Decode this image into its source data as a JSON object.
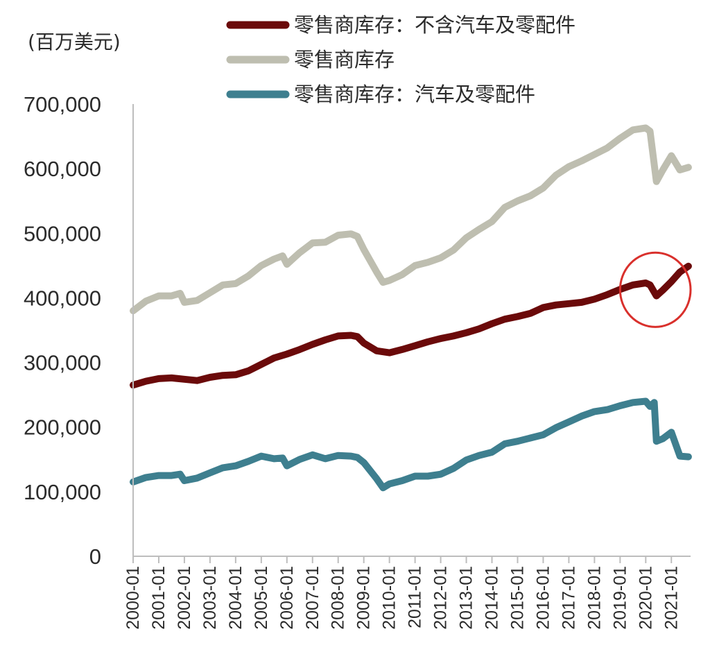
{
  "chart_data": {
    "type": "line",
    "title": "",
    "unit_label": "(百万美元)",
    "xlabel": "",
    "ylabel": "",
    "ylim": [
      0,
      700000
    ],
    "yticks": [
      0,
      100000,
      200000,
      300000,
      400000,
      500000,
      600000,
      700000
    ],
    "ytick_labels": [
      "0",
      "100,000",
      "200,000",
      "300,000",
      "400,000",
      "500,000",
      "600,000",
      "700,000"
    ],
    "xticks": [
      "2000-01",
      "2001-01",
      "2002-01",
      "2003-01",
      "2004-01",
      "2005-01",
      "2006-01",
      "2007-01",
      "2008-01",
      "2009-01",
      "2010-01",
      "2011-01",
      "2012-01",
      "2013-01",
      "2014-01",
      "2015-01",
      "2016-01",
      "2017-01",
      "2018-01",
      "2019-01",
      "2020-01",
      "2021-01"
    ],
    "x_range": [
      "2000-01",
      "2021-09"
    ],
    "grid": false,
    "legend_position": "top",
    "highlight": {
      "shape": "ellipse",
      "color": "#d9302c",
      "x_range": [
        "2019-01",
        "2021-09"
      ],
      "y_range": [
        355000,
        470000
      ]
    },
    "series": [
      {
        "name": "零售商库存：不含汽车及零配件",
        "color": "#6b0a0a",
        "points": [
          [
            "2000-01",
            265000
          ],
          [
            "2000-07",
            271000
          ],
          [
            "2001-01",
            275000
          ],
          [
            "2001-07",
            276000
          ],
          [
            "2002-01",
            274000
          ],
          [
            "2002-07",
            272000
          ],
          [
            "2003-01",
            277000
          ],
          [
            "2003-07",
            280000
          ],
          [
            "2004-01",
            281000
          ],
          [
            "2004-07",
            287000
          ],
          [
            "2005-01",
            297000
          ],
          [
            "2005-07",
            307000
          ],
          [
            "2006-01",
            313000
          ],
          [
            "2006-07",
            320000
          ],
          [
            "2007-01",
            328000
          ],
          [
            "2007-07",
            335000
          ],
          [
            "2008-01",
            341000
          ],
          [
            "2008-07",
            342000
          ],
          [
            "2008-10",
            340000
          ],
          [
            "2009-01",
            330000
          ],
          [
            "2009-07",
            318000
          ],
          [
            "2010-01",
            315000
          ],
          [
            "2010-07",
            320000
          ],
          [
            "2011-01",
            326000
          ],
          [
            "2011-07",
            332000
          ],
          [
            "2012-01",
            337000
          ],
          [
            "2012-07",
            341000
          ],
          [
            "2013-01",
            346000
          ],
          [
            "2013-07",
            352000
          ],
          [
            "2014-01",
            360000
          ],
          [
            "2014-07",
            367000
          ],
          [
            "2015-01",
            371000
          ],
          [
            "2015-07",
            376000
          ],
          [
            "2016-01",
            385000
          ],
          [
            "2016-07",
            389000
          ],
          [
            "2017-01",
            391000
          ],
          [
            "2017-07",
            393000
          ],
          [
            "2018-01",
            398000
          ],
          [
            "2018-07",
            405000
          ],
          [
            "2019-01",
            413000
          ],
          [
            "2019-07",
            420000
          ],
          [
            "2020-01",
            423000
          ],
          [
            "2020-03",
            420000
          ],
          [
            "2020-06",
            403000
          ],
          [
            "2020-09",
            412000
          ],
          [
            "2021-01",
            425000
          ],
          [
            "2021-05",
            440000
          ],
          [
            "2021-09",
            449000
          ]
        ]
      },
      {
        "name": "零售商库存",
        "color": "#bebeb0",
        "points": [
          [
            "2000-01",
            380000
          ],
          [
            "2000-07",
            395000
          ],
          [
            "2001-01",
            403000
          ],
          [
            "2001-07",
            403000
          ],
          [
            "2001-11",
            407000
          ],
          [
            "2002-01",
            393000
          ],
          [
            "2002-07",
            396000
          ],
          [
            "2003-01",
            408000
          ],
          [
            "2003-07",
            420000
          ],
          [
            "2004-01",
            422000
          ],
          [
            "2004-07",
            434000
          ],
          [
            "2005-01",
            450000
          ],
          [
            "2005-07",
            460000
          ],
          [
            "2005-11",
            465000
          ],
          [
            "2006-01",
            452000
          ],
          [
            "2006-07",
            470000
          ],
          [
            "2007-01",
            485000
          ],
          [
            "2007-07",
            486000
          ],
          [
            "2008-01",
            497000
          ],
          [
            "2008-07",
            499000
          ],
          [
            "2008-10",
            495000
          ],
          [
            "2009-01",
            475000
          ],
          [
            "2009-07",
            440000
          ],
          [
            "2009-10",
            424000
          ],
          [
            "2010-01",
            427000
          ],
          [
            "2010-07",
            436000
          ],
          [
            "2011-01",
            450000
          ],
          [
            "2011-07",
            455000
          ],
          [
            "2012-01",
            462000
          ],
          [
            "2012-07",
            474000
          ],
          [
            "2013-01",
            493000
          ],
          [
            "2013-07",
            506000
          ],
          [
            "2014-01",
            518000
          ],
          [
            "2014-07",
            540000
          ],
          [
            "2015-01",
            550000
          ],
          [
            "2015-07",
            558000
          ],
          [
            "2016-01",
            570000
          ],
          [
            "2016-07",
            590000
          ],
          [
            "2017-01",
            603000
          ],
          [
            "2017-07",
            612000
          ],
          [
            "2018-01",
            622000
          ],
          [
            "2018-07",
            632000
          ],
          [
            "2019-01",
            647000
          ],
          [
            "2019-07",
            660000
          ],
          [
            "2020-01",
            663000
          ],
          [
            "2020-03",
            658000
          ],
          [
            "2020-06",
            580000
          ],
          [
            "2020-09",
            598000
          ],
          [
            "2021-01",
            620000
          ],
          [
            "2021-05",
            598000
          ],
          [
            "2021-09",
            602000
          ]
        ]
      },
      {
        "name": "零售商库存：汽车及零配件",
        "color": "#3e7f8f",
        "points": [
          [
            "2000-01",
            115000
          ],
          [
            "2000-07",
            122000
          ],
          [
            "2001-01",
            125000
          ],
          [
            "2001-07",
            125000
          ],
          [
            "2001-11",
            127000
          ],
          [
            "2002-01",
            117000
          ],
          [
            "2002-07",
            121000
          ],
          [
            "2003-01",
            129000
          ],
          [
            "2003-07",
            137000
          ],
          [
            "2004-01",
            140000
          ],
          [
            "2004-07",
            147000
          ],
          [
            "2005-01",
            155000
          ],
          [
            "2005-07",
            151000
          ],
          [
            "2005-11",
            152000
          ],
          [
            "2006-01",
            140000
          ],
          [
            "2006-07",
            150000
          ],
          [
            "2007-01",
            157000
          ],
          [
            "2007-07",
            151000
          ],
          [
            "2008-01",
            156000
          ],
          [
            "2008-07",
            155000
          ],
          [
            "2008-10",
            153000
          ],
          [
            "2009-01",
            145000
          ],
          [
            "2009-07",
            120000
          ],
          [
            "2009-10",
            106000
          ],
          [
            "2010-01",
            112000
          ],
          [
            "2010-07",
            117000
          ],
          [
            "2011-01",
            124000
          ],
          [
            "2011-07",
            124000
          ],
          [
            "2012-01",
            127000
          ],
          [
            "2012-07",
            136000
          ],
          [
            "2013-01",
            149000
          ],
          [
            "2013-07",
            156000
          ],
          [
            "2014-01",
            161000
          ],
          [
            "2014-07",
            174000
          ],
          [
            "2015-01",
            178000
          ],
          [
            "2015-07",
            183000
          ],
          [
            "2016-01",
            188000
          ],
          [
            "2016-07",
            199000
          ],
          [
            "2017-01",
            208000
          ],
          [
            "2017-07",
            217000
          ],
          [
            "2018-01",
            224000
          ],
          [
            "2018-07",
            227000
          ],
          [
            "2019-01",
            233000
          ],
          [
            "2019-07",
            238000
          ],
          [
            "2020-01",
            240000
          ],
          [
            "2020-03",
            232000
          ],
          [
            "2020-05",
            238000
          ],
          [
            "2020-06",
            178000
          ],
          [
            "2020-09",
            182000
          ],
          [
            "2021-01",
            192000
          ],
          [
            "2021-05",
            155000
          ],
          [
            "2021-09",
            154000
          ]
        ]
      }
    ]
  }
}
